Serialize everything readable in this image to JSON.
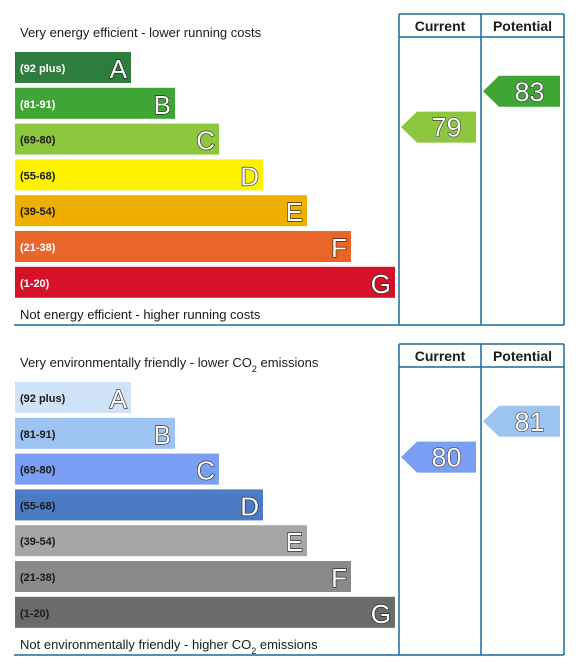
{
  "chart_data": [
    {
      "type": "bar",
      "chart_name": "energy-efficiency",
      "top_caption": "Very energy efficient - lower running costs",
      "bottom_caption": "Not energy efficient - higher running costs",
      "column_headers": [
        "Current",
        "Potential"
      ],
      "bands": [
        {
          "letter": "A",
          "range": "(92 plus)",
          "color": "#2e7d3e"
        },
        {
          "letter": "B",
          "range": "(81-91)",
          "color": "#3fa535"
        },
        {
          "letter": "C",
          "range": "(69-80)",
          "color": "#8dc63f"
        },
        {
          "letter": "D",
          "range": "(55-68)",
          "color": "#fff200"
        },
        {
          "letter": "E",
          "range": "(39-54)",
          "color": "#f0ae00"
        },
        {
          "letter": "F",
          "range": "(21-38)",
          "color": "#e8662a"
        },
        {
          "letter": "G",
          "range": "(1-20)",
          "color": "#d6112a"
        }
      ],
      "current": {
        "value": 79,
        "band": "C",
        "color": "#8dc63f"
      },
      "potential": {
        "value": 83,
        "band": "B",
        "color": "#3fa535"
      }
    },
    {
      "type": "bar",
      "chart_name": "environmental-impact",
      "top_caption_prefix": "Very environmentally friendly - lower CO",
      "top_caption_sub": "2",
      "top_caption_suffix": " emissions",
      "bottom_caption_prefix": "Not environmentally friendly - higher CO",
      "bottom_caption_sub": "2",
      "bottom_caption_suffix": " emissions",
      "column_headers": [
        "Current",
        "Potential"
      ],
      "bands": [
        {
          "letter": "A",
          "range": "(92 plus)",
          "color": "#cfe2f7"
        },
        {
          "letter": "B",
          "range": "(81-91)",
          "color": "#9dc3f0"
        },
        {
          "letter": "C",
          "range": "(69-80)",
          "color": "#7b9ef5"
        },
        {
          "letter": "D",
          "range": "(55-68)",
          "color": "#4a7bc4"
        },
        {
          "letter": "E",
          "range": "(39-54)",
          "color": "#a6a6a6"
        },
        {
          "letter": "F",
          "range": "(21-38)",
          "color": "#8a8a8a"
        },
        {
          "letter": "G",
          "range": "(1-20)",
          "color": "#6b6b6b"
        }
      ],
      "current": {
        "value": 80,
        "band": "C",
        "color": "#7b9ef5"
      },
      "potential": {
        "value": 81,
        "band": "B",
        "color": "#9dc3f0"
      }
    }
  ]
}
